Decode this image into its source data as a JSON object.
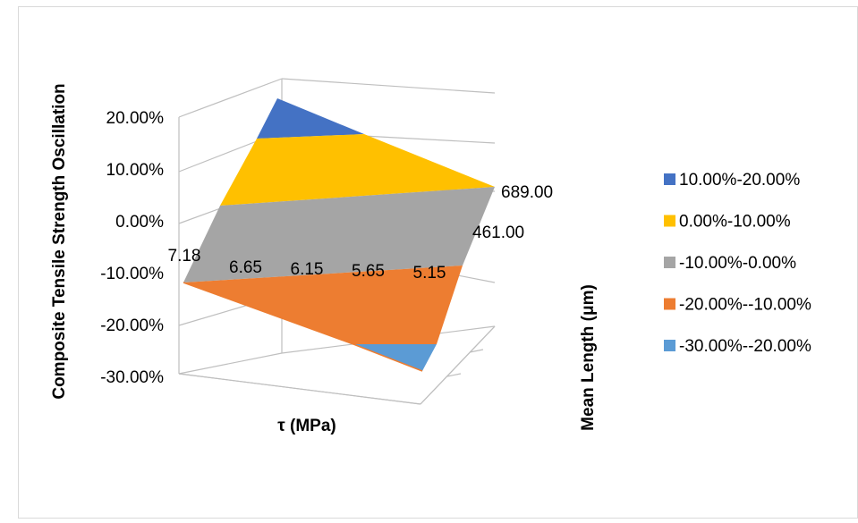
{
  "chart_data": {
    "type": "surface",
    "title": "",
    "xlabel": "τ (MPa)",
    "ylabel": "Mean Length (μm)",
    "zlabel": "Composite Tensile Strength Oscillation",
    "x_ticks": [
      "7.18",
      "6.65",
      "6.15",
      "5.65",
      "5.15"
    ],
    "y_ticks": [
      "461.00",
      "689.00"
    ],
    "z_ticks": [
      "20.00%",
      "10.00%",
      "0.00%",
      "-10.00%",
      "-20.00%",
      "-30.00%"
    ],
    "zlim": [
      -0.3,
      0.2
    ],
    "grid": true,
    "legend_position": "right",
    "legend": [
      {
        "label": "10.00%-20.00%",
        "color": "#4472C4"
      },
      {
        "label": "0.00%-10.00%",
        "color": "#FFC000"
      },
      {
        "label": "-10.00%-0.00%",
        "color": "#A5A5A5"
      },
      {
        "label": "-20.00%--10.00%",
        "color": "#ED7D31"
      },
      {
        "label": "-30.00%--20.00%",
        "color": "#5B9BD5"
      }
    ],
    "surface": {
      "x": [
        7.18,
        5.15
      ],
      "y": [
        461.0,
        689.0
      ],
      "z": [
        [
          -0.12,
          -0.28
        ],
        [
          0.22,
          0.06
        ]
      ]
    }
  }
}
